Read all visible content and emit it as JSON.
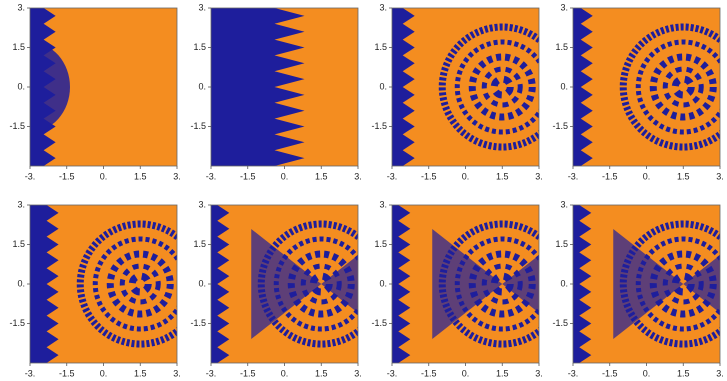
{
  "chart_data": [
    {
      "type": "density",
      "colors": [
        "#1e1e9c",
        "#f48d20"
      ],
      "xlim": [
        -3,
        3
      ],
      "ylim": [
        -3,
        3
      ],
      "xticks": [
        {
          "value": -3,
          "label": "-3."
        },
        -1.5,
        {
          "value": 0,
          "label": "0."
        },
        1.5,
        {
          "value": 3,
          "label": "3."
        }
      ],
      "yticks": [
        -1.5,
        {
          "value": 0,
          "label": "0."
        },
        1.5,
        {
          "value": 3,
          "label": "3."
        }
      ]
    },
    {
      "type": "density",
      "colors": [
        "#1e1e9c",
        "#f48d20"
      ],
      "xlim": [
        -3,
        3
      ],
      "ylim": [
        -3,
        3
      ],
      "xticks": [
        {
          "value": -3,
          "label": "-3."
        },
        -1.5,
        {
          "value": 0,
          "label": "0."
        },
        1.5,
        {
          "value": 3,
          "label": "3."
        }
      ],
      "yticks": [
        -1.5,
        {
          "value": 0,
          "label": "0."
        },
        1.5,
        {
          "value": 3,
          "label": "3."
        }
      ]
    },
    {
      "type": "density",
      "colors": [
        "#1e1e9c",
        "#f48d20"
      ],
      "xlim": [
        -3,
        3
      ],
      "ylim": [
        -3,
        3
      ],
      "xticks": [
        {
          "value": -3,
          "label": "-3."
        },
        -1.5,
        {
          "value": 0,
          "label": "0."
        },
        1.5,
        {
          "value": 3,
          "label": "3."
        }
      ],
      "yticks": [
        -1.5,
        {
          "value": 0,
          "label": "0."
        },
        1.5,
        {
          "value": 3,
          "label": "3."
        }
      ]
    },
    {
      "type": "density",
      "colors": [
        "#1e1e9c",
        "#f48d20"
      ],
      "xlim": [
        -3,
        3
      ],
      "ylim": [
        -3,
        3
      ],
      "xticks": [
        {
          "value": -3,
          "label": "-3."
        },
        -1.5,
        {
          "value": 0,
          "label": "0."
        },
        1.5,
        {
          "value": 3,
          "label": "3."
        }
      ],
      "yticks": [
        -1.5,
        {
          "value": 0,
          "label": "0."
        },
        1.5,
        {
          "value": 3,
          "label": "3."
        }
      ]
    },
    {
      "type": "density",
      "colors": [
        "#1e1e9c",
        "#f48d20"
      ],
      "xlim": [
        -3,
        3
      ],
      "ylim": [
        -3,
        3
      ],
      "xticks": [
        {
          "value": -3,
          "label": "-3."
        },
        -1.5,
        {
          "value": 0,
          "label": "0."
        },
        1.5,
        {
          "value": 3,
          "label": "3."
        }
      ],
      "yticks": [
        -1.5,
        {
          "value": 0,
          "label": "0."
        },
        1.5,
        {
          "value": 3,
          "label": "3."
        }
      ]
    },
    {
      "type": "density",
      "colors": [
        "#1e1e9c",
        "#f48d20"
      ],
      "xlim": [
        -3,
        3
      ],
      "ylim": [
        -3,
        3
      ],
      "xticks": [
        {
          "value": -3,
          "label": "-3."
        },
        -1.5,
        {
          "value": 0,
          "label": "0."
        },
        1.5,
        {
          "value": 3,
          "label": "3."
        }
      ],
      "yticks": [
        -1.5,
        {
          "value": 0,
          "label": "0."
        },
        1.5,
        {
          "value": 3,
          "label": "3."
        }
      ]
    },
    {
      "type": "density",
      "colors": [
        "#1e1e9c",
        "#f48d20"
      ],
      "xlim": [
        -3,
        3
      ],
      "ylim": [
        -3,
        3
      ],
      "xticks": [
        {
          "value": -3,
          "label": "-3."
        },
        -1.5,
        {
          "value": 0,
          "label": "0."
        },
        1.5,
        {
          "value": 3,
          "label": "3."
        }
      ],
      "yticks": [
        -1.5,
        {
          "value": 0,
          "label": "0."
        },
        1.5,
        {
          "value": 3,
          "label": "3."
        }
      ]
    },
    {
      "type": "density",
      "colors": [
        "#1e1e9c",
        "#f48d20"
      ],
      "xlim": [
        -3,
        3
      ],
      "ylim": [
        -3,
        3
      ],
      "xticks": [
        {
          "value": -3,
          "label": "-3."
        },
        -1.5,
        {
          "value": 0,
          "label": "0."
        },
        1.5,
        {
          "value": 3,
          "label": "3."
        }
      ],
      "yticks": [
        -1.5,
        {
          "value": 0,
          "label": "0."
        },
        1.5,
        {
          "value": 3,
          "label": "3."
        }
      ]
    }
  ]
}
